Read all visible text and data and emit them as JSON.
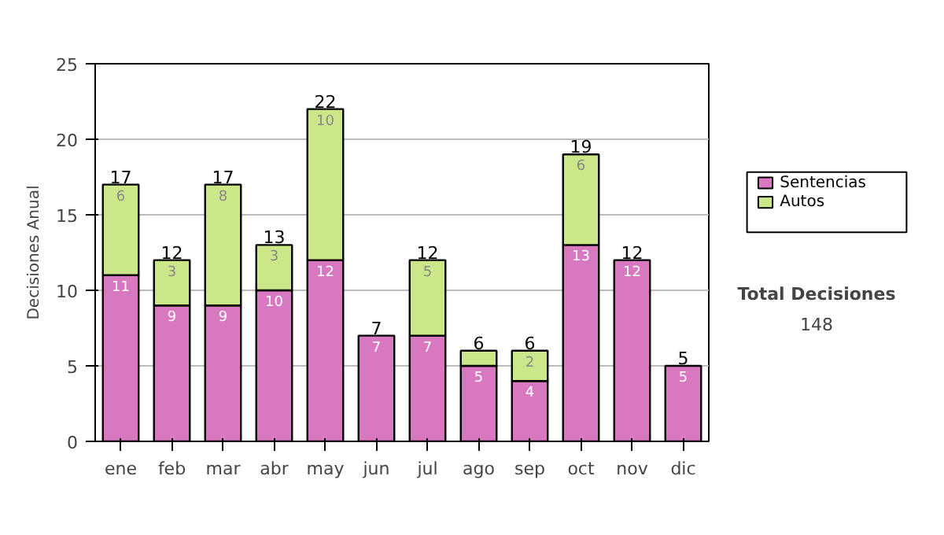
{
  "chart_data": {
    "type": "bar",
    "stacked": true,
    "ylabel": "Decisiones Anual",
    "categories": [
      "ene",
      "feb",
      "mar",
      "abr",
      "may",
      "jun",
      "jul",
      "ago",
      "sep",
      "oct",
      "nov",
      "dic"
    ],
    "series": [
      {
        "name": "Sentencias",
        "color": "#d878c0",
        "values": [
          11,
          9,
          9,
          10,
          12,
          7,
          7,
          5,
          4,
          13,
          12,
          5
        ],
        "value_labels": [
          "11",
          "9",
          "9",
          "10",
          "12",
          "7",
          "7",
          "5",
          "4",
          "13",
          "12",
          "5"
        ]
      },
      {
        "name": "Autos",
        "color": "#cce68a",
        "values": [
          6,
          3,
          8,
          3,
          10,
          null,
          5,
          1,
          2,
          6,
          null,
          null
        ],
        "value_labels": [
          "6",
          "3",
          "8",
          "3",
          "10",
          null,
          "5",
          null,
          "2",
          "6",
          null,
          null
        ]
      }
    ],
    "totals": [
      "17",
      "12",
      "17",
      "13",
      "22",
      "7",
      "12",
      "6",
      "6",
      "19",
      "12",
      "5"
    ],
    "ylim": [
      0,
      25
    ],
    "yticks": [
      0,
      5,
      10,
      15,
      20,
      25
    ],
    "grid": "y",
    "legend": "right",
    "annotations": [
      "Total Decisiones",
      "148"
    ]
  }
}
